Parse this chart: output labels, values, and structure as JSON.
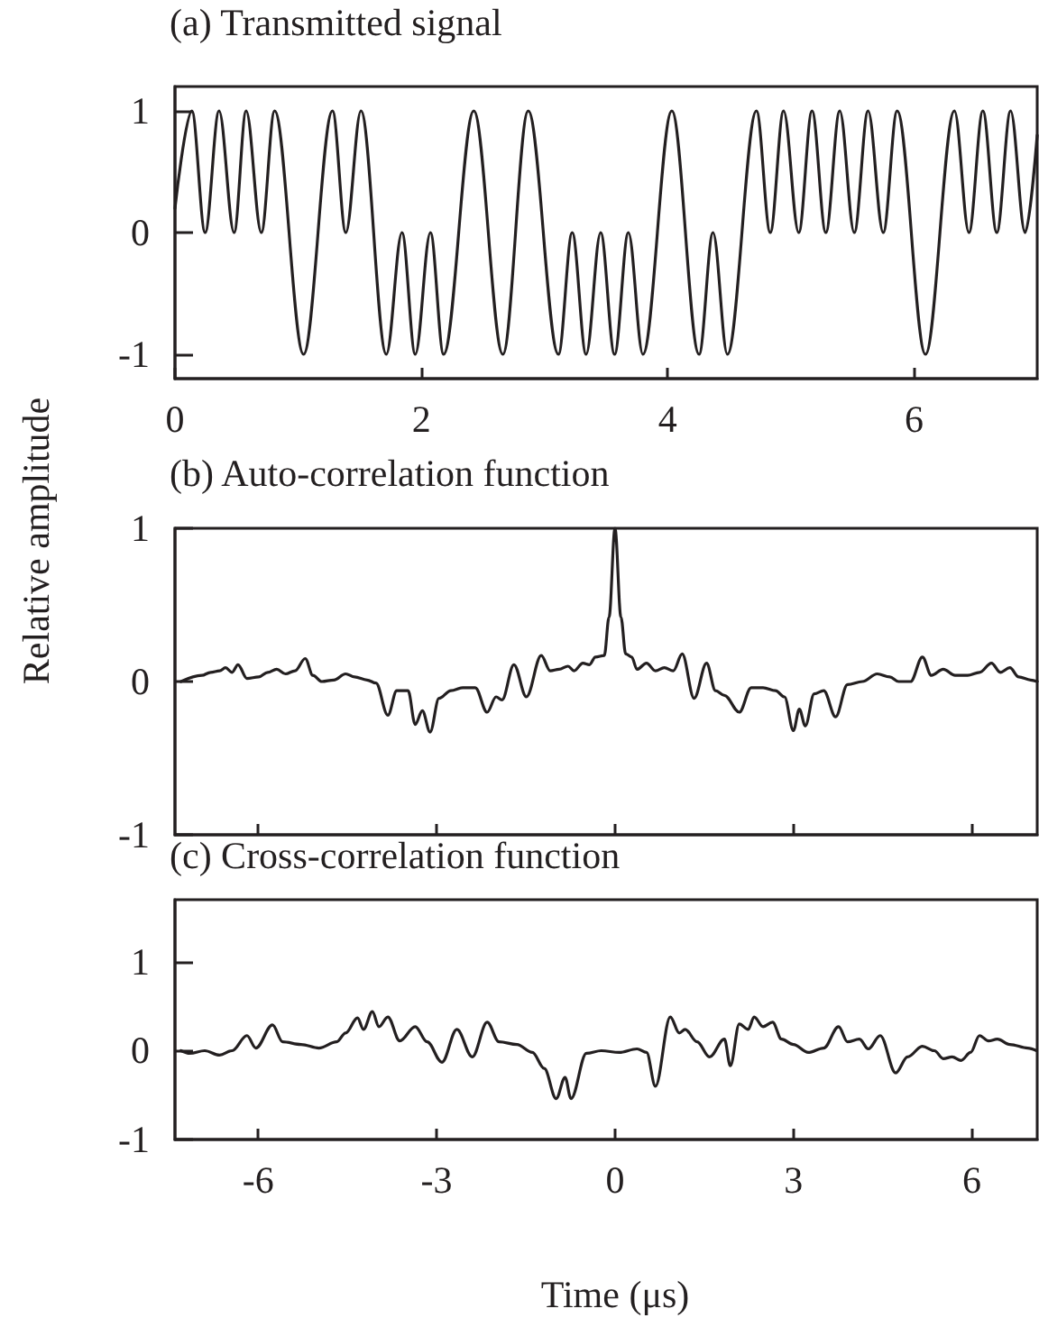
{
  "chart_data": [
    {
      "type": "line",
      "title": "(a) Transmitted signal",
      "marker": "none",
      "xlim": [
        0,
        7
      ],
      "xticks": [
        0,
        2,
        4,
        6
      ],
      "ylim": [
        -1.2,
        1.2
      ],
      "yticks": [
        -1,
        0,
        1
      ],
      "x": [
        0,
        0.137,
        0.245,
        0.358,
        0.48,
        0.578,
        0.701,
        0.809,
        1.044,
        1.279,
        1.387,
        1.51,
        1.716,
        1.843,
        1.951,
        2.074,
        2.181,
        2.426,
        2.662,
        2.868,
        3.113,
        3.225,
        3.338,
        3.456,
        3.569,
        3.681,
        3.799,
        4.034,
        4.255,
        4.368,
        4.485,
        4.721,
        4.833,
        4.941,
        5.064,
        5.172,
        5.284,
        5.397,
        5.515,
        5.627,
        5.75,
        5.863,
        6.093,
        6.328,
        6.446,
        6.559,
        6.672,
        6.784,
        6.902,
        7.0
      ],
      "series": [
        {
          "color": "#231f20",
          "values": [
            0.2,
            1,
            0,
            1,
            0,
            1,
            0,
            1,
            -1,
            1,
            0,
            1,
            -1,
            0,
            -1,
            0,
            -1,
            1,
            -1,
            1,
            -1,
            0,
            -1,
            0,
            -1,
            0,
            -1,
            1,
            -1,
            0,
            -1,
            1,
            0,
            1,
            0,
            1,
            0,
            1,
            0,
            1,
            0,
            1,
            -1,
            1,
            0,
            1,
            0,
            1,
            0,
            0.8
          ]
        }
      ]
    },
    {
      "type": "line",
      "title": "(b) Auto-correlation function",
      "ylabel": "Relative amplitude",
      "marker": "none",
      "tick_labels": "y",
      "xlim": [
        -7.4,
        7.1
      ],
      "xticks": [
        -6,
        -3,
        0,
        3,
        6
      ],
      "ylim": [
        -1,
        1
      ],
      "yticks": [
        -1,
        0,
        1
      ],
      "x": [
        -7.3,
        -6.95,
        -6.8,
        -6.65,
        -6.55,
        -6.44,
        -6.34,
        -6.19,
        -5.99,
        -5.84,
        -5.69,
        -5.54,
        -5.38,
        -5.21,
        -5.08,
        -4.93,
        -4.73,
        -4.53,
        -4.38,
        -4.17,
        -4.02,
        -3.82,
        -3.67,
        -3.48,
        -3.36,
        -3.24,
        -3.11,
        -2.96,
        -2.76,
        -2.56,
        -2.35,
        -2.15,
        -2.0,
        -1.9,
        -1.7,
        -1.49,
        -1.24,
        -1.09,
        -0.94,
        -0.79,
        -0.69,
        -0.54,
        -0.43,
        -0.33,
        -0.18,
        -0.1,
        0,
        0.1,
        0.18,
        0.28,
        0.37,
        0.53,
        0.68,
        0.83,
        0.98,
        1.13,
        1.33,
        1.54,
        1.69,
        1.84,
        2.09,
        2.29,
        2.49,
        2.7,
        2.85,
        3.0,
        3.1,
        3.2,
        3.35,
        3.51,
        3.71,
        3.91,
        4.16,
        4.41,
        4.62,
        4.77,
        4.97,
        5.17,
        5.32,
        5.52,
        5.72,
        5.93,
        6.13,
        6.33,
        6.48,
        6.64,
        6.79,
        6.99,
        7.1
      ],
      "series": [
        {
          "color": "#231f20",
          "values": [
            0,
            0.04,
            0.06,
            0.07,
            0.09,
            0.06,
            0.11,
            0.02,
            0.03,
            0.06,
            0.08,
            0.05,
            0.07,
            0.15,
            0.04,
            0,
            0.01,
            0.05,
            0.03,
            0.01,
            -0.01,
            -0.22,
            -0.06,
            -0.06,
            -0.28,
            -0.19,
            -0.33,
            -0.11,
            -0.06,
            -0.04,
            -0.04,
            -0.2,
            -0.1,
            -0.12,
            0.11,
            -0.1,
            0.17,
            0.07,
            0.08,
            0.1,
            0.07,
            0.12,
            0.11,
            0.16,
            0.17,
            0.42,
            1,
            0.42,
            0.18,
            0.16,
            0.08,
            0.12,
            0.07,
            0.09,
            0.07,
            0.18,
            -0.11,
            0.12,
            -0.06,
            -0.09,
            -0.2,
            -0.04,
            -0.04,
            -0.06,
            -0.1,
            -0.32,
            -0.18,
            -0.29,
            -0.08,
            -0.06,
            -0.23,
            -0.02,
            0,
            0.05,
            0.03,
            0,
            0,
            0.16,
            0.04,
            0.08,
            0.04,
            0.04,
            0.06,
            0.12,
            0.06,
            0.09,
            0.03,
            0.01,
            0
          ]
        }
      ]
    },
    {
      "type": "line",
      "title": "(c) Cross-correlation function",
      "xlabel": "Time (μs)",
      "marker": "none",
      "xlim": [
        -7.4,
        7.1
      ],
      "xticks": [
        -6,
        -3,
        0,
        3,
        6
      ],
      "ylim": [
        -1,
        1.7
      ],
      "yticks": [
        -1,
        0,
        1
      ],
      "x": [
        -7.3,
        -7.15,
        -6.9,
        -6.65,
        -6.44,
        -6.19,
        -6.04,
        -5.76,
        -5.59,
        -5.28,
        -4.98,
        -4.68,
        -4.53,
        -4.33,
        -4.23,
        -4.08,
        -3.97,
        -3.82,
        -3.62,
        -3.36,
        -3.16,
        -2.91,
        -2.66,
        -2.4,
        -2.15,
        -1.95,
        -1.65,
        -1.39,
        -1.19,
        -0.99,
        -0.84,
        -0.74,
        -0.48,
        -0.23,
        0.07,
        0.37,
        0.53,
        0.68,
        0.93,
        1.08,
        1.18,
        1.38,
        1.59,
        1.84,
        1.94,
        2.09,
        2.24,
        2.34,
        2.49,
        2.65,
        2.8,
        3.0,
        3.25,
        3.51,
        3.76,
        3.91,
        4.11,
        4.26,
        4.46,
        4.72,
        4.92,
        5.17,
        5.37,
        5.52,
        5.67,
        5.82,
        5.98,
        6.13,
        6.28,
        6.43,
        6.64,
        6.94,
        7.09
      ],
      "series": [
        {
          "color": "#231f20",
          "values": [
            0,
            -0.03,
            0,
            -0.05,
            0,
            0.17,
            0.03,
            0.29,
            0.1,
            0.07,
            0.03,
            0.1,
            0.2,
            0.37,
            0.24,
            0.44,
            0.27,
            0.38,
            0.11,
            0.27,
            0.1,
            -0.13,
            0.24,
            -0.07,
            0.32,
            0.1,
            0.07,
            -0.02,
            -0.2,
            -0.54,
            -0.3,
            -0.54,
            -0.03,
            0,
            -0.02,
            0.02,
            -0.02,
            -0.4,
            0.38,
            0.2,
            0.24,
            0.1,
            -0.07,
            0.13,
            -0.17,
            0.3,
            0.24,
            0.38,
            0.27,
            0.32,
            0.13,
            0.07,
            -0.02,
            0.03,
            0.27,
            0.1,
            0.13,
            0.02,
            0.17,
            -0.25,
            -0.07,
            0.05,
            0,
            -0.09,
            -0.07,
            -0.11,
            -0.02,
            0.17,
            0.11,
            0.13,
            0.07,
            0.03,
            0
          ]
        }
      ]
    }
  ]
}
